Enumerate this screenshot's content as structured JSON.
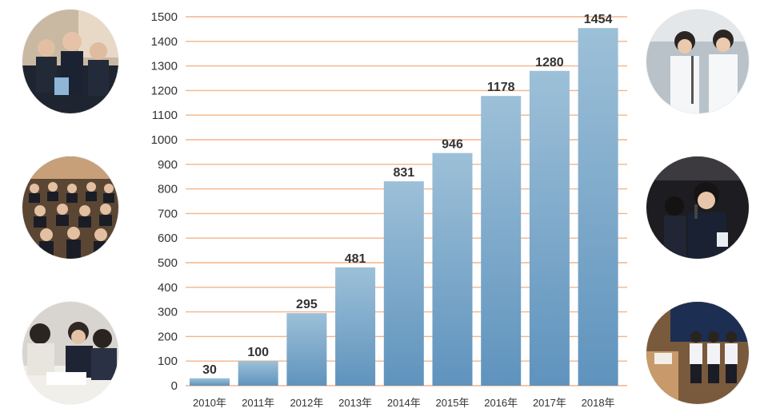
{
  "chart_data": {
    "type": "bar",
    "categories": [
      "2010年",
      "2011年",
      "2012年",
      "2013年",
      "2014年",
      "2015年",
      "2016年",
      "2017年",
      "2018年"
    ],
    "values": [
      30,
      100,
      295,
      481,
      831,
      946,
      1178,
      1280,
      1454
    ],
    "title": "",
    "xlabel": "",
    "ylabel": "",
    "ylim": [
      0,
      1500
    ],
    "yticks": [
      0,
      100,
      200,
      300,
      400,
      500,
      600,
      700,
      800,
      900,
      1000,
      1100,
      1200,
      1300,
      1400,
      1500
    ],
    "grid": true,
    "bar_color_top": "#9dc0d8",
    "bar_color_bottom": "#5f93bd",
    "grid_color": "#f3b48c"
  },
  "photos": [
    {
      "icon": "students-in-blazers-photo"
    },
    {
      "icon": "auditorium-audience-photo"
    },
    {
      "icon": "students-working-photo"
    },
    {
      "icon": "presenters-in-lab-coats-photo"
    },
    {
      "icon": "speaker-with-microphone-photo"
    },
    {
      "icon": "students-on-stage-photo"
    }
  ]
}
